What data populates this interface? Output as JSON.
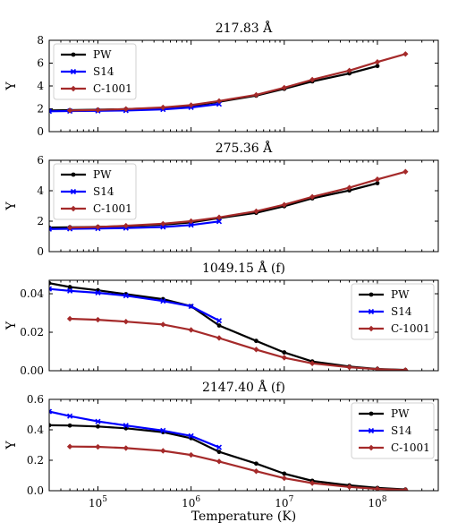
{
  "figure": {
    "xlabel": "Temperature (K)"
  },
  "chart_data": [
    {
      "type": "line",
      "title": "217.83 Å",
      "xlabel": "",
      "ylabel": "Y",
      "xscale": "log",
      "xlim": [
        30000,
        450000000
      ],
      "ylim": [
        0,
        8
      ],
      "yticks": [
        0,
        2,
        4,
        6,
        8
      ],
      "ytick_labels": [
        "0",
        "2",
        "4",
        "6",
        "8"
      ],
      "xtick_labels_shown": false,
      "legend_position": "upper-left",
      "series": [
        {
          "name": "PW",
          "color": "#000000",
          "marker": "circle",
          "x": [
            30000,
            50000,
            100000,
            200000,
            500000,
            1000000,
            2000000,
            5000000,
            10000000,
            20000000,
            50000000,
            100000000
          ],
          "y": [
            1.85,
            1.88,
            1.92,
            1.97,
            2.08,
            2.25,
            2.62,
            3.15,
            3.75,
            4.4,
            5.1,
            5.75
          ]
        },
        {
          "name": "S14",
          "color": "#0000ff",
          "marker": "x",
          "x": [
            30000,
            50000,
            100000,
            200000,
            500000,
            1000000,
            2000000
          ],
          "y": [
            1.78,
            1.8,
            1.82,
            1.85,
            1.95,
            2.12,
            2.42
          ]
        },
        {
          "name": "C-1001",
          "color": "#a52a2a",
          "marker": "diamond",
          "x": [
            50000,
            100000,
            200000,
            500000,
            1000000,
            2000000,
            5000000,
            10000000,
            20000000,
            50000000,
            100000000,
            200000000
          ],
          "y": [
            1.85,
            1.9,
            1.98,
            2.12,
            2.32,
            2.68,
            3.22,
            3.85,
            4.55,
            5.35,
            6.1,
            6.8
          ]
        }
      ]
    },
    {
      "type": "line",
      "title": "275.36 Å",
      "xlabel": "",
      "ylabel": "Y",
      "xscale": "log",
      "xlim": [
        30000,
        450000000
      ],
      "ylim": [
        0,
        6
      ],
      "yticks": [
        0,
        2,
        4,
        6
      ],
      "ytick_labels": [
        "0",
        "2",
        "4",
        "6"
      ],
      "xtick_labels_shown": false,
      "legend_position": "upper-left",
      "series": [
        {
          "name": "PW",
          "color": "#000000",
          "marker": "circle",
          "x": [
            30000,
            50000,
            100000,
            200000,
            500000,
            1000000,
            2000000,
            5000000,
            10000000,
            20000000,
            50000000,
            100000000
          ],
          "y": [
            1.58,
            1.6,
            1.63,
            1.67,
            1.77,
            1.92,
            2.2,
            2.55,
            2.98,
            3.5,
            4.02,
            4.5
          ]
        },
        {
          "name": "S14",
          "color": "#0000ff",
          "marker": "x",
          "x": [
            30000,
            50000,
            100000,
            200000,
            500000,
            1000000,
            2000000
          ],
          "y": [
            1.48,
            1.5,
            1.52,
            1.55,
            1.62,
            1.75,
            1.98
          ]
        },
        {
          "name": "C-1001",
          "color": "#a52a2a",
          "marker": "diamond",
          "x": [
            50000,
            100000,
            200000,
            500000,
            1000000,
            2000000,
            5000000,
            10000000,
            20000000,
            50000000,
            100000000,
            200000000
          ],
          "y": [
            1.58,
            1.62,
            1.7,
            1.83,
            2.0,
            2.25,
            2.65,
            3.08,
            3.6,
            4.2,
            4.75,
            5.25
          ]
        }
      ]
    },
    {
      "type": "line",
      "title": "1049.15 Å (f)",
      "xlabel": "",
      "ylabel": "Y",
      "xscale": "log",
      "xlim": [
        30000,
        450000000
      ],
      "ylim": [
        0,
        0.047
      ],
      "yticks": [
        0,
        0.02,
        0.04
      ],
      "ytick_labels": [
        "0.00",
        "0.02",
        "0.04"
      ],
      "xtick_labels_shown": false,
      "legend_position": "upper-right",
      "series": [
        {
          "name": "PW",
          "color": "#000000",
          "marker": "circle",
          "x": [
            30000,
            50000,
            100000,
            200000,
            500000,
            1000000,
            2000000,
            5000000,
            10000000,
            20000000,
            50000000,
            100000000,
            200000000
          ],
          "y": [
            0.0455,
            0.0435,
            0.0418,
            0.0398,
            0.0372,
            0.0335,
            0.0235,
            0.0155,
            0.0095,
            0.0048,
            0.0022,
            0.0009,
            0.0004
          ]
        },
        {
          "name": "S14",
          "color": "#0000ff",
          "marker": "x",
          "x": [
            30000,
            50000,
            100000,
            200000,
            500000,
            1000000,
            2000000
          ],
          "y": [
            0.0425,
            0.0415,
            0.0405,
            0.039,
            0.0362,
            0.0335,
            0.026
          ]
        },
        {
          "name": "C-1001",
          "color": "#a52a2a",
          "marker": "diamond",
          "x": [
            50000,
            100000,
            200000,
            500000,
            1000000,
            2000000,
            5000000,
            10000000,
            20000000,
            50000000,
            100000000,
            200000000
          ],
          "y": [
            0.027,
            0.0265,
            0.0255,
            0.024,
            0.0212,
            0.017,
            0.011,
            0.0068,
            0.0038,
            0.0018,
            0.0008,
            0.0003
          ]
        }
      ]
    },
    {
      "type": "line",
      "title": "2147.40 Å (f)",
      "xlabel": "Temperature (K)",
      "ylabel": "Y",
      "xscale": "log",
      "xlim": [
        30000,
        450000000
      ],
      "ylim": [
        0,
        0.6
      ],
      "yticks": [
        0,
        0.2,
        0.4,
        0.6
      ],
      "ytick_labels": [
        "0.0",
        "0.2",
        "0.4",
        "0.6"
      ],
      "xticks": [
        100000,
        1000000,
        10000000,
        100000000
      ],
      "xtick_labels": [
        {
          "base": "10",
          "exp": "5"
        },
        {
          "base": "10",
          "exp": "6"
        },
        {
          "base": "10",
          "exp": "7"
        },
        {
          "base": "10",
          "exp": "8"
        }
      ],
      "xtick_labels_shown": true,
      "legend_position": "upper-right",
      "series": [
        {
          "name": "PW",
          "color": "#000000",
          "marker": "circle",
          "x": [
            30000,
            50000,
            100000,
            200000,
            500000,
            1000000,
            2000000,
            5000000,
            10000000,
            20000000,
            50000000,
            100000000,
            200000000
          ],
          "y": [
            0.43,
            0.428,
            0.422,
            0.41,
            0.385,
            0.345,
            0.255,
            0.178,
            0.112,
            0.065,
            0.035,
            0.018,
            0.008
          ]
        },
        {
          "name": "S14",
          "color": "#0000ff",
          "marker": "x",
          "x": [
            30000,
            50000,
            100000,
            200000,
            500000,
            1000000,
            2000000
          ],
          "y": [
            0.52,
            0.49,
            0.455,
            0.428,
            0.395,
            0.36,
            0.285
          ]
        },
        {
          "name": "C-1001",
          "color": "#a52a2a",
          "marker": "diamond",
          "x": [
            50000,
            100000,
            200000,
            500000,
            1000000,
            2000000,
            5000000,
            10000000,
            20000000,
            50000000,
            100000000,
            200000000
          ],
          "y": [
            0.29,
            0.288,
            0.28,
            0.262,
            0.235,
            0.192,
            0.128,
            0.082,
            0.05,
            0.025,
            0.012,
            0.005
          ]
        }
      ]
    }
  ]
}
